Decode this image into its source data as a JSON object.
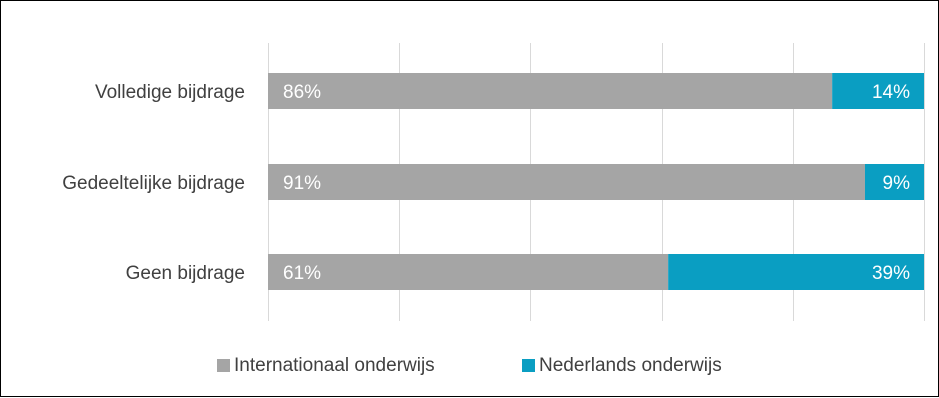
{
  "chart_data": {
    "type": "bar",
    "orientation": "horizontal",
    "stacked": true,
    "percent": true,
    "categories": [
      "Volledige bijdrage",
      "Gedeeltelijke bijdrage",
      "Geen bijdrage"
    ],
    "series": [
      {
        "name": "Internationaal onderwijs",
        "color": "#a5a5a5",
        "values": [
          86,
          91,
          61
        ],
        "labels": [
          "86%",
          "91%",
          "61%"
        ]
      },
      {
        "name": "Nederlands onderwijs",
        "color": "#0a9ec2",
        "values": [
          14,
          9,
          39
        ],
        "labels": [
          "14%",
          "9%",
          "39%"
        ]
      }
    ],
    "xlim": [
      0,
      100
    ],
    "grid": true,
    "legend_position": "bottom",
    "title": "",
    "xlabel": "",
    "ylabel": ""
  }
}
